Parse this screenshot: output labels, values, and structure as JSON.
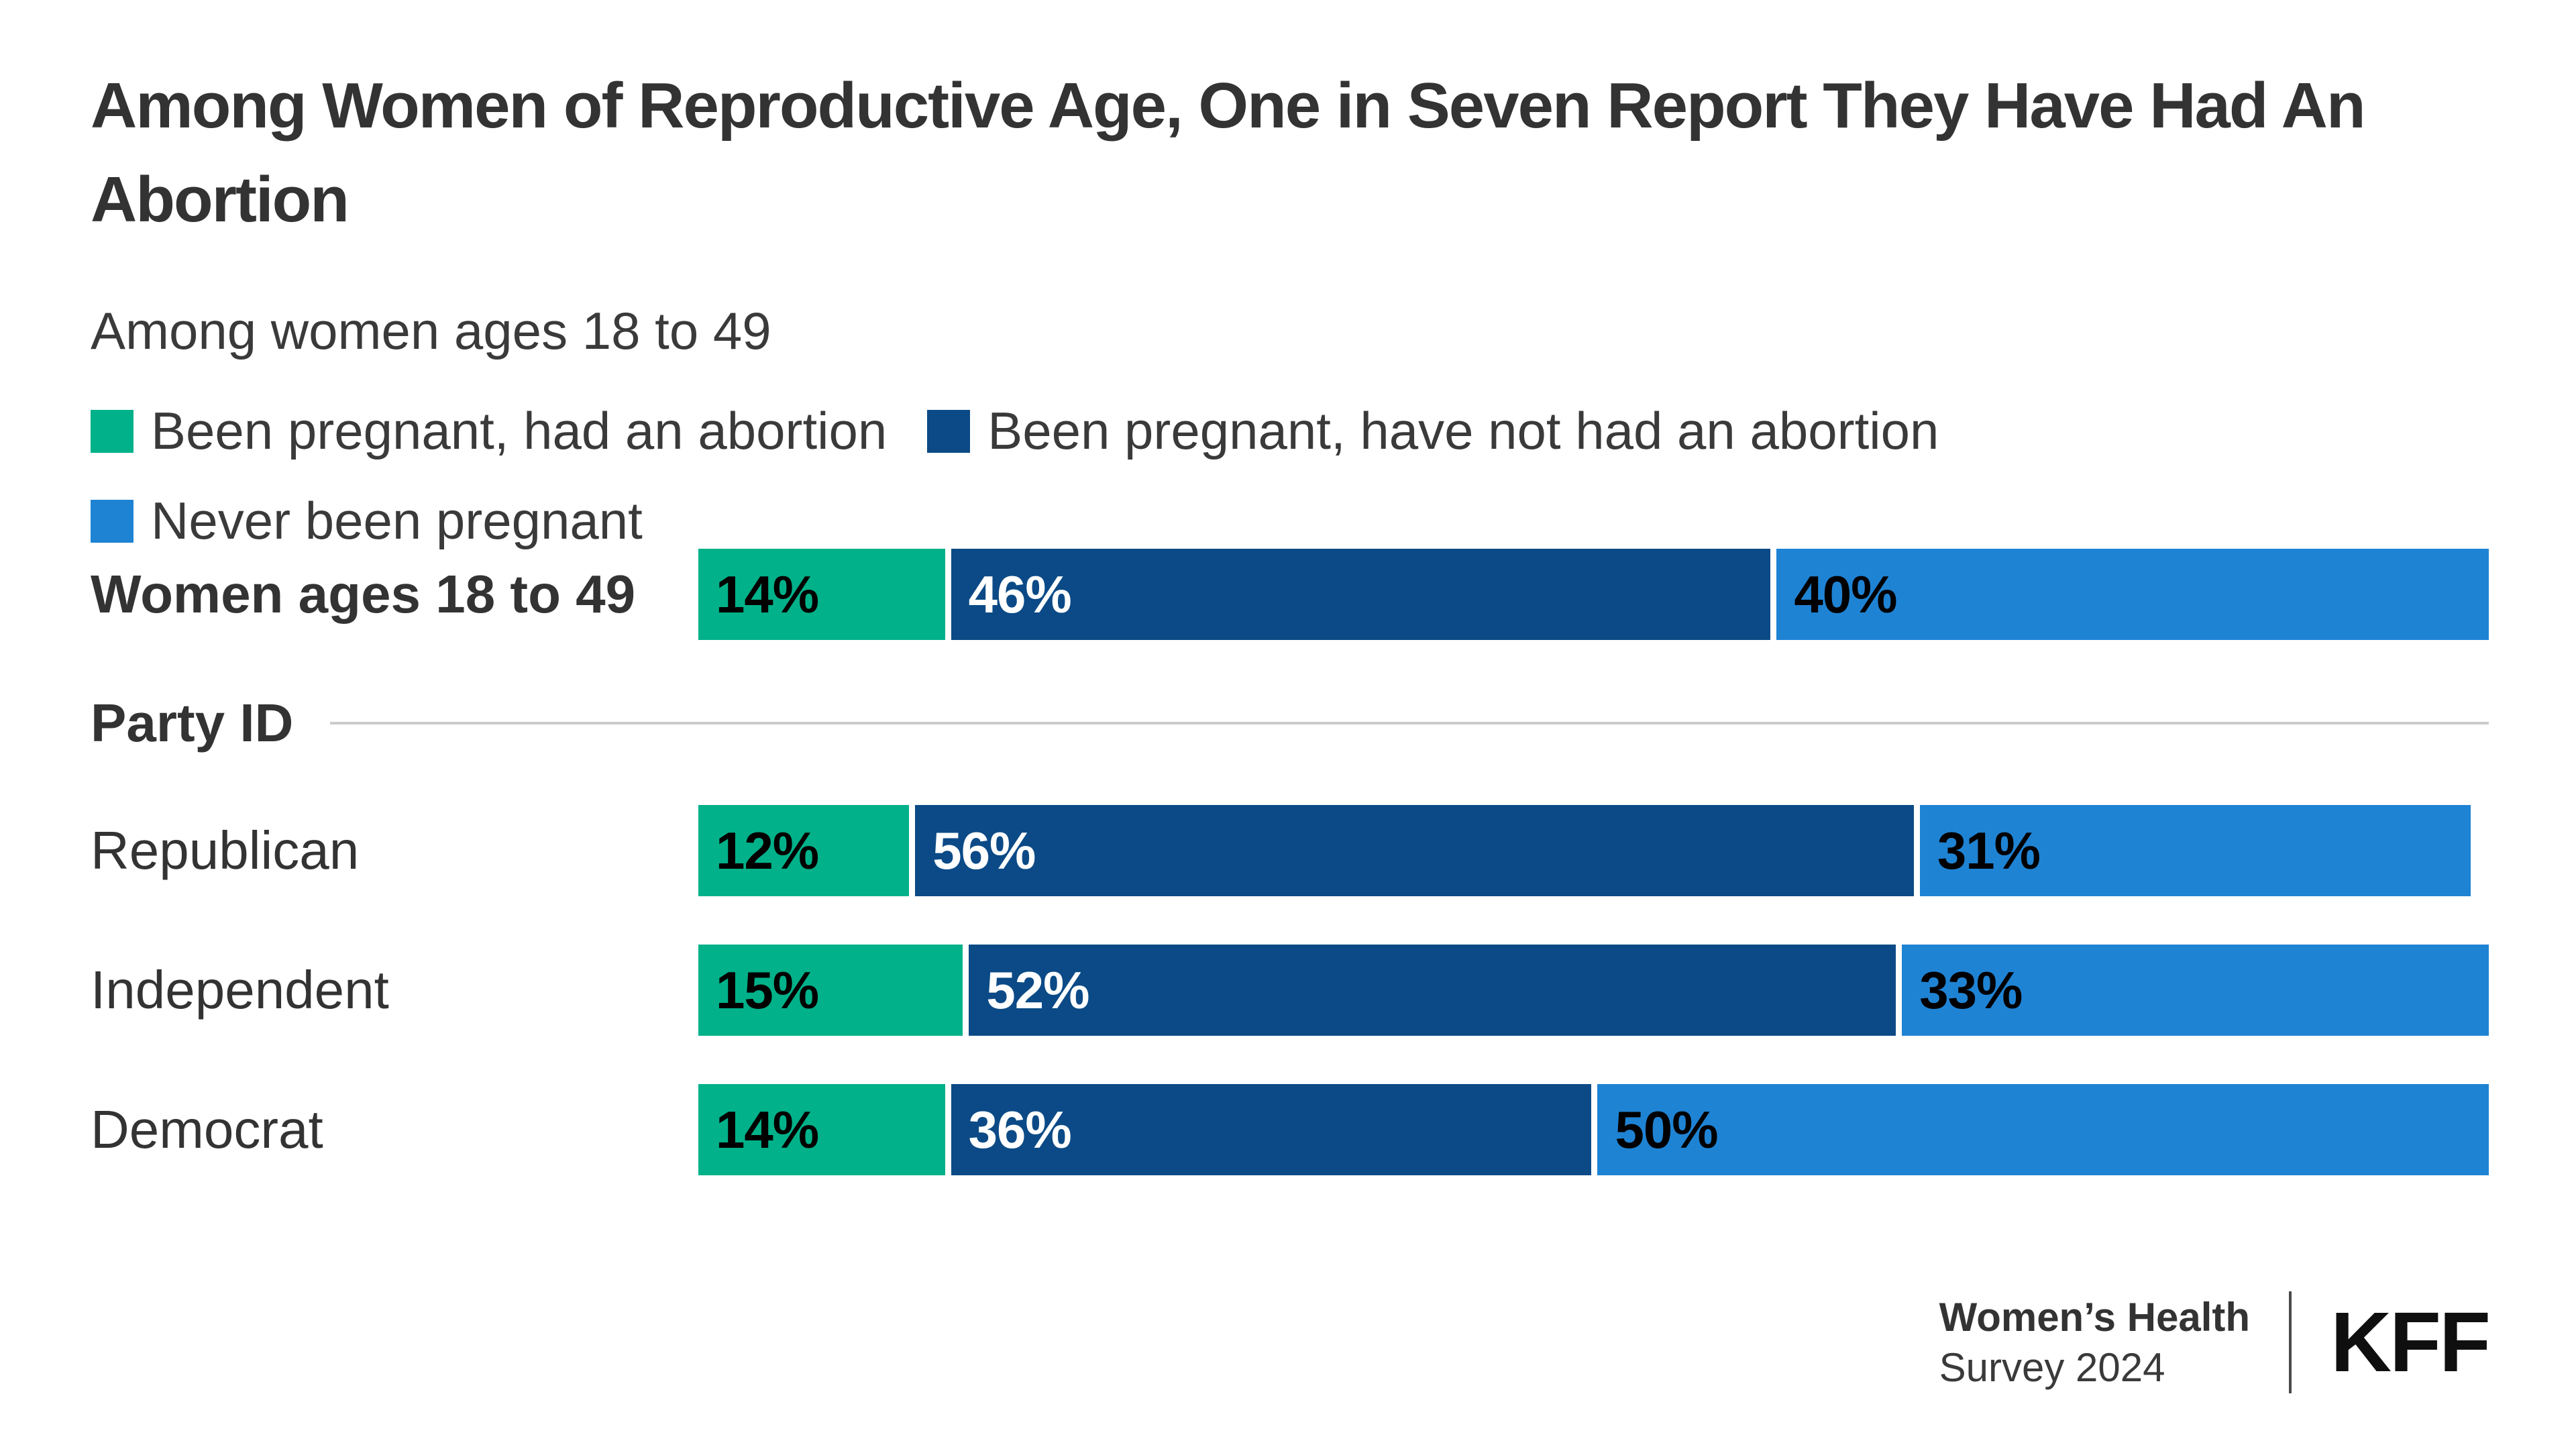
{
  "title": "Among Women of Reproductive Age, One in Seven Report They Have Had An Abortion",
  "subtitle": "Among women ages 18 to 49",
  "section_label": "Party ID",
  "footer": {
    "source_line1": "Women’s Health",
    "source_line2": "Survey 2024",
    "logo": "KFF"
  },
  "colors": {
    "abortion_green": "#00B189",
    "no_abortion_navy": "#0B4A86",
    "never_pregnant_blue": "#1F83D4",
    "title_text": "#333333",
    "body_text": "#3A3A3A",
    "section_rule": "#CBCBCB"
  },
  "chart_data": {
    "type": "bar",
    "stacked": true,
    "orientation": "horizontal",
    "unit": "%",
    "title": "Among Women of Reproductive Age, One in Seven Report They Have Had An Abortion",
    "subtitle": "Among women ages 18 to 49",
    "xlim": [
      0,
      100
    ],
    "grid": false,
    "legend_position": "top",
    "series": [
      {
        "name": "Been pregnant, had an abortion",
        "color": "#00B189",
        "value_label_color": "#000000"
      },
      {
        "name": "Been pregnant, have not had an abortion",
        "color": "#0B4A86",
        "value_label_color": "#ffffff"
      },
      {
        "name": "Never been pregnant",
        "color": "#1F83D4",
        "value_label_color": "#000000"
      }
    ],
    "rows": [
      {
        "category": "Women ages 18 to 49",
        "bold": true,
        "section": "overall",
        "values": [
          14,
          46,
          40
        ]
      },
      {
        "category": "Republican",
        "bold": false,
        "section": "Party ID",
        "values": [
          12,
          56,
          31
        ]
      },
      {
        "category": "Independent",
        "bold": false,
        "section": "Party ID",
        "values": [
          15,
          52,
          33
        ]
      },
      {
        "category": "Democrat",
        "bold": false,
        "section": "Party ID",
        "values": [
          14,
          36,
          50
        ]
      }
    ]
  }
}
